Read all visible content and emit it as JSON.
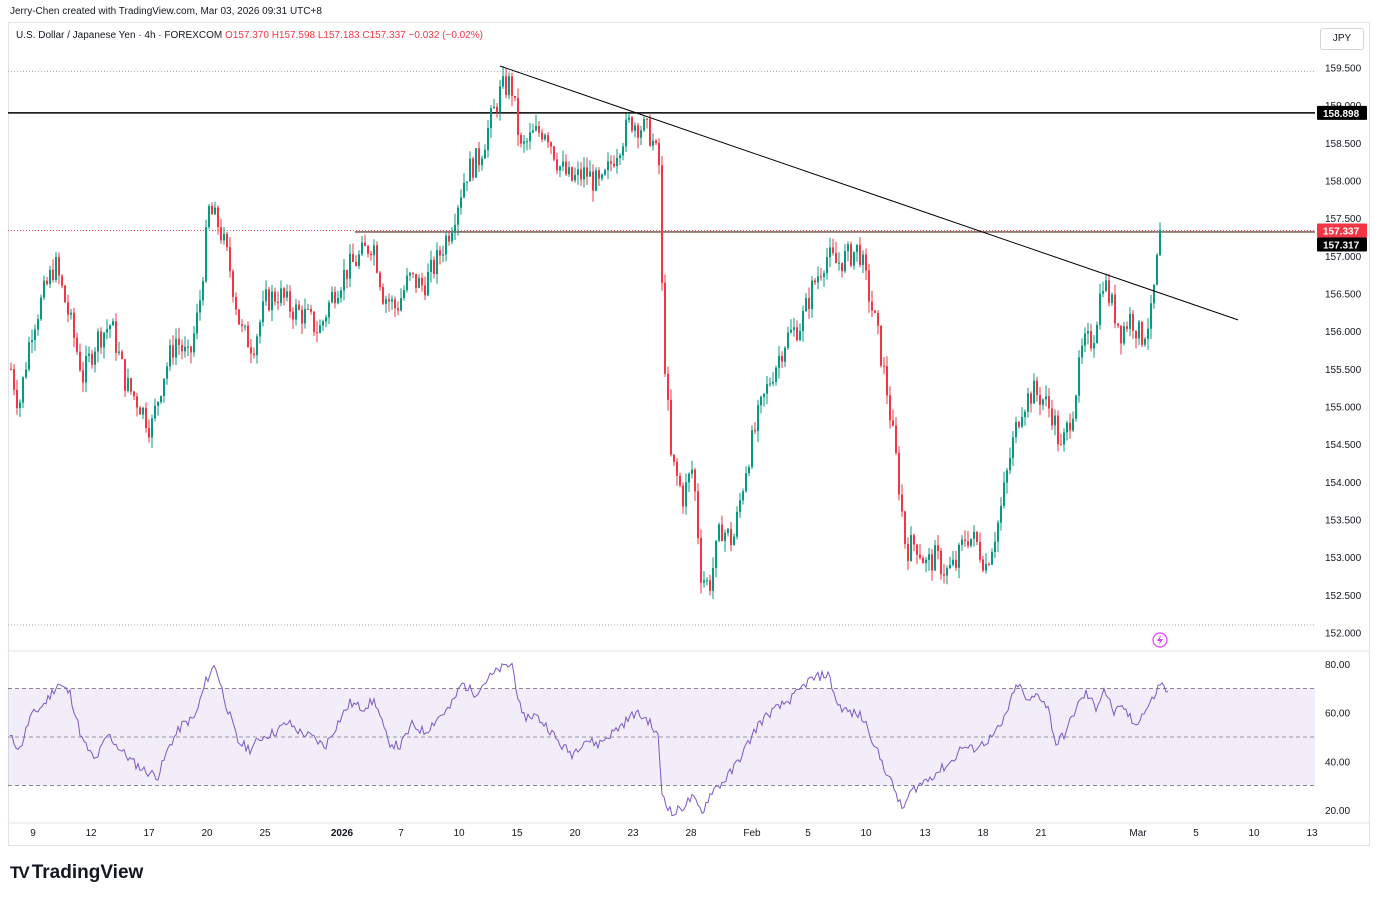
{
  "header": {
    "created_by": "Jerry-Chen created with TradingView.com, Mar 03, 2026 09:31 UTC+8"
  },
  "symbol": {
    "name": "U.S. Dollar / Japanese Yen · 4h · FOREXCOM",
    "open": "O157.370",
    "high": "H157.598",
    "low": "L157.183",
    "close": "C157.337",
    "change": "−0.032 (−0.02%)"
  },
  "currency_button": "JPY",
  "colors": {
    "up": "#089981",
    "down": "#f23645",
    "rsi": "#7e57c2",
    "rsi_band": "#7e57c2"
  },
  "brand": {
    "name": "TradingView",
    "icon": "tradingview-logo-icon"
  },
  "alert_icon": "flash-alert-icon",
  "price_labels": {
    "resistance": "158.898",
    "last": "157.337",
    "prev_close": "157.317"
  },
  "chart_data": [
    {
      "type": "candlestick",
      "title": "U.S. Dollar / Japanese Yen · 4h · FOREXCOM",
      "ylim": [
        151.9,
        159.6
      ],
      "y_ticks": [
        "159.500",
        "159.000",
        "158.500",
        "158.000",
        "157.500",
        "157.000",
        "156.500",
        "156.000",
        "155.500",
        "155.000",
        "154.500",
        "154.000",
        "153.500",
        "153.000",
        "152.500",
        "152.000"
      ],
      "x_ticks": [
        "9",
        "12",
        "17",
        "20",
        "25",
        "2026",
        "7",
        "10",
        "15",
        "20",
        "23",
        "28",
        "Feb",
        "5",
        "10",
        "13",
        "18",
        "21",
        "Mar",
        "5",
        "10",
        "13"
      ],
      "close_path": [
        {
          "x": 0,
          "y": 155.5
        },
        {
          "x": 8,
          "y": 155.0
        },
        {
          "x": 20,
          "y": 156.0
        },
        {
          "x": 33,
          "y": 156.5
        },
        {
          "x": 44,
          "y": 156.9
        },
        {
          "x": 58,
          "y": 156.2
        },
        {
          "x": 72,
          "y": 155.4
        },
        {
          "x": 86,
          "y": 155.9
        },
        {
          "x": 100,
          "y": 156.1
        },
        {
          "x": 115,
          "y": 155.3
        },
        {
          "x": 130,
          "y": 155.0
        },
        {
          "x": 140,
          "y": 154.7
        },
        {
          "x": 152,
          "y": 155.4
        },
        {
          "x": 165,
          "y": 155.9
        },
        {
          "x": 178,
          "y": 155.6
        },
        {
          "x": 188,
          "y": 156.3
        },
        {
          "x": 198,
          "y": 157.6
        },
        {
          "x": 208,
          "y": 157.4
        },
        {
          "x": 218,
          "y": 156.9
        },
        {
          "x": 230,
          "y": 156.0
        },
        {
          "x": 242,
          "y": 155.8
        },
        {
          "x": 255,
          "y": 156.4
        },
        {
          "x": 268,
          "y": 156.5
        },
        {
          "x": 280,
          "y": 156.3
        },
        {
          "x": 295,
          "y": 156.2
        },
        {
          "x": 308,
          "y": 156.0
        },
        {
          "x": 322,
          "y": 156.5
        },
        {
          "x": 335,
          "y": 156.8
        },
        {
          "x": 350,
          "y": 157.0
        },
        {
          "x": 362,
          "y": 157.2
        },
        {
          "x": 372,
          "y": 156.5
        },
        {
          "x": 385,
          "y": 156.3
        },
        {
          "x": 398,
          "y": 156.7
        },
        {
          "x": 412,
          "y": 156.6
        },
        {
          "x": 425,
          "y": 156.9
        },
        {
          "x": 440,
          "y": 157.4
        },
        {
          "x": 455,
          "y": 158.1
        },
        {
          "x": 468,
          "y": 158.3
        },
        {
          "x": 480,
          "y": 158.8
        },
        {
          "x": 490,
          "y": 159.2
        },
        {
          "x": 500,
          "y": 159.3
        },
        {
          "x": 510,
          "y": 158.4
        },
        {
          "x": 522,
          "y": 158.6
        },
        {
          "x": 535,
          "y": 158.7
        },
        {
          "x": 548,
          "y": 158.2
        },
        {
          "x": 560,
          "y": 158.0
        },
        {
          "x": 575,
          "y": 158.1
        },
        {
          "x": 590,
          "y": 157.9
        },
        {
          "x": 605,
          "y": 158.4
        },
        {
          "x": 620,
          "y": 158.8
        },
        {
          "x": 632,
          "y": 158.7
        },
        {
          "x": 640,
          "y": 158.6
        },
        {
          "x": 648,
          "y": 158.2
        },
        {
          "x": 652,
          "y": 156.0
        },
        {
          "x": 660,
          "y": 154.3
        },
        {
          "x": 672,
          "y": 153.8
        },
        {
          "x": 682,
          "y": 154.2
        },
        {
          "x": 690,
          "y": 152.8
        },
        {
          "x": 698,
          "y": 152.6
        },
        {
          "x": 710,
          "y": 153.4
        },
        {
          "x": 722,
          "y": 153.2
        },
        {
          "x": 735,
          "y": 154.2
        },
        {
          "x": 748,
          "y": 154.9
        },
        {
          "x": 760,
          "y": 155.4
        },
        {
          "x": 775,
          "y": 155.9
        },
        {
          "x": 790,
          "y": 156.1
        },
        {
          "x": 802,
          "y": 156.6
        },
        {
          "x": 815,
          "y": 157.0
        },
        {
          "x": 825,
          "y": 156.9
        },
        {
          "x": 838,
          "y": 157.0
        },
        {
          "x": 848,
          "y": 157.1
        },
        {
          "x": 856,
          "y": 156.6
        },
        {
          "x": 866,
          "y": 156.0
        },
        {
          "x": 876,
          "y": 155.2
        },
        {
          "x": 886,
          "y": 154.2
        },
        {
          "x": 895,
          "y": 153.1
        },
        {
          "x": 905,
          "y": 153.2
        },
        {
          "x": 915,
          "y": 152.9
        },
        {
          "x": 925,
          "y": 153.0
        },
        {
          "x": 935,
          "y": 152.8
        },
        {
          "x": 945,
          "y": 152.9
        },
        {
          "x": 955,
          "y": 153.3
        },
        {
          "x": 965,
          "y": 153.2
        },
        {
          "x": 975,
          "y": 152.9
        },
        {
          "x": 988,
          "y": 153.5
        },
        {
          "x": 1000,
          "y": 154.4
        },
        {
          "x": 1010,
          "y": 155.0
        },
        {
          "x": 1022,
          "y": 155.2
        },
        {
          "x": 1032,
          "y": 155.1
        },
        {
          "x": 1042,
          "y": 154.9
        },
        {
          "x": 1050,
          "y": 154.4
        },
        {
          "x": 1062,
          "y": 155.0
        },
        {
          "x": 1072,
          "y": 155.8
        },
        {
          "x": 1082,
          "y": 155.9
        },
        {
          "x": 1092,
          "y": 156.7
        },
        {
          "x": 1102,
          "y": 156.3
        },
        {
          "x": 1110,
          "y": 156.0
        },
        {
          "x": 1120,
          "y": 156.2
        },
        {
          "x": 1130,
          "y": 155.9
        },
        {
          "x": 1140,
          "y": 156.2
        },
        {
          "x": 1146,
          "y": 156.9
        },
        {
          "x": 1152,
          "y": 157.6
        },
        {
          "x": 1158,
          "y": 157.34
        }
      ],
      "horizontal_lines": [
        {
          "y": 158.898,
          "style": "solid-black"
        },
        {
          "y": 157.317,
          "style": "solid-brown"
        },
        {
          "y": 159.45,
          "style": "dotted"
        },
        {
          "y": 152.1,
          "style": "dotted"
        }
      ],
      "trendline": {
        "from": {
          "x": 490,
          "y": 159.52
        },
        "to": {
          "x": 1228,
          "y": 156.15
        }
      }
    },
    {
      "type": "line",
      "title": "",
      "ylim": [
        15,
        85
      ],
      "y_ticks": [
        "80.00",
        "60.00",
        "40.00",
        "20.00"
      ],
      "band": [
        30,
        70
      ],
      "midline": 50,
      "values": [
        {
          "x": 0,
          "y": 50
        },
        {
          "x": 10,
          "y": 45
        },
        {
          "x": 20,
          "y": 58
        },
        {
          "x": 35,
          "y": 64
        },
        {
          "x": 48,
          "y": 72
        },
        {
          "x": 60,
          "y": 68
        },
        {
          "x": 72,
          "y": 49
        },
        {
          "x": 85,
          "y": 40
        },
        {
          "x": 98,
          "y": 51
        },
        {
          "x": 110,
          "y": 45
        },
        {
          "x": 122,
          "y": 40
        },
        {
          "x": 135,
          "y": 36
        },
        {
          "x": 148,
          "y": 34
        },
        {
          "x": 160,
          "y": 47
        },
        {
          "x": 172,
          "y": 55
        },
        {
          "x": 185,
          "y": 58
        },
        {
          "x": 196,
          "y": 73
        },
        {
          "x": 205,
          "y": 80
        },
        {
          "x": 215,
          "y": 65
        },
        {
          "x": 228,
          "y": 48
        },
        {
          "x": 240,
          "y": 45
        },
        {
          "x": 252,
          "y": 50
        },
        {
          "x": 265,
          "y": 52
        },
        {
          "x": 278,
          "y": 56
        },
        {
          "x": 290,
          "y": 52
        },
        {
          "x": 302,
          "y": 50
        },
        {
          "x": 315,
          "y": 46
        },
        {
          "x": 328,
          "y": 56
        },
        {
          "x": 340,
          "y": 64
        },
        {
          "x": 352,
          "y": 62
        },
        {
          "x": 365,
          "y": 65
        },
        {
          "x": 378,
          "y": 48
        },
        {
          "x": 390,
          "y": 46
        },
        {
          "x": 402,
          "y": 55
        },
        {
          "x": 415,
          "y": 52
        },
        {
          "x": 428,
          "y": 58
        },
        {
          "x": 440,
          "y": 62
        },
        {
          "x": 452,
          "y": 72
        },
        {
          "x": 465,
          "y": 68
        },
        {
          "x": 478,
          "y": 74
        },
        {
          "x": 490,
          "y": 78
        },
        {
          "x": 502,
          "y": 80
        },
        {
          "x": 512,
          "y": 58
        },
        {
          "x": 525,
          "y": 59
        },
        {
          "x": 538,
          "y": 54
        },
        {
          "x": 550,
          "y": 47
        },
        {
          "x": 562,
          "y": 43
        },
        {
          "x": 575,
          "y": 49
        },
        {
          "x": 588,
          "y": 47
        },
        {
          "x": 600,
          "y": 51
        },
        {
          "x": 612,
          "y": 55
        },
        {
          "x": 625,
          "y": 60
        },
        {
          "x": 638,
          "y": 57
        },
        {
          "x": 648,
          "y": 50
        },
        {
          "x": 652,
          "y": 27
        },
        {
          "x": 662,
          "y": 18
        },
        {
          "x": 672,
          "y": 21
        },
        {
          "x": 682,
          "y": 25
        },
        {
          "x": 692,
          "y": 19
        },
        {
          "x": 702,
          "y": 28
        },
        {
          "x": 712,
          "y": 31
        },
        {
          "x": 722,
          "y": 36
        },
        {
          "x": 735,
          "y": 45
        },
        {
          "x": 748,
          "y": 55
        },
        {
          "x": 760,
          "y": 60
        },
        {
          "x": 772,
          "y": 63
        },
        {
          "x": 785,
          "y": 67
        },
        {
          "x": 798,
          "y": 73
        },
        {
          "x": 810,
          "y": 75
        },
        {
          "x": 818,
          "y": 76
        },
        {
          "x": 828,
          "y": 63
        },
        {
          "x": 840,
          "y": 60
        },
        {
          "x": 850,
          "y": 59
        },
        {
          "x": 858,
          "y": 54
        },
        {
          "x": 866,
          "y": 45
        },
        {
          "x": 876,
          "y": 36
        },
        {
          "x": 886,
          "y": 27
        },
        {
          "x": 892,
          "y": 20
        },
        {
          "x": 902,
          "y": 28
        },
        {
          "x": 912,
          "y": 31
        },
        {
          "x": 922,
          "y": 34
        },
        {
          "x": 932,
          "y": 37
        },
        {
          "x": 942,
          "y": 40
        },
        {
          "x": 952,
          "y": 46
        },
        {
          "x": 962,
          "y": 45
        },
        {
          "x": 972,
          "y": 47
        },
        {
          "x": 982,
          "y": 50
        },
        {
          "x": 992,
          "y": 55
        },
        {
          "x": 1000,
          "y": 64
        },
        {
          "x": 1008,
          "y": 72
        },
        {
          "x": 1018,
          "y": 64
        },
        {
          "x": 1028,
          "y": 68
        },
        {
          "x": 1038,
          "y": 62
        },
        {
          "x": 1046,
          "y": 47
        },
        {
          "x": 1056,
          "y": 52
        },
        {
          "x": 1066,
          "y": 62
        },
        {
          "x": 1076,
          "y": 68
        },
        {
          "x": 1086,
          "y": 62
        },
        {
          "x": 1094,
          "y": 70
        },
        {
          "x": 1104,
          "y": 60
        },
        {
          "x": 1114,
          "y": 62
        },
        {
          "x": 1124,
          "y": 55
        },
        {
          "x": 1134,
          "y": 60
        },
        {
          "x": 1142,
          "y": 65
        },
        {
          "x": 1150,
          "y": 72
        },
        {
          "x": 1158,
          "y": 69
        }
      ]
    }
  ]
}
